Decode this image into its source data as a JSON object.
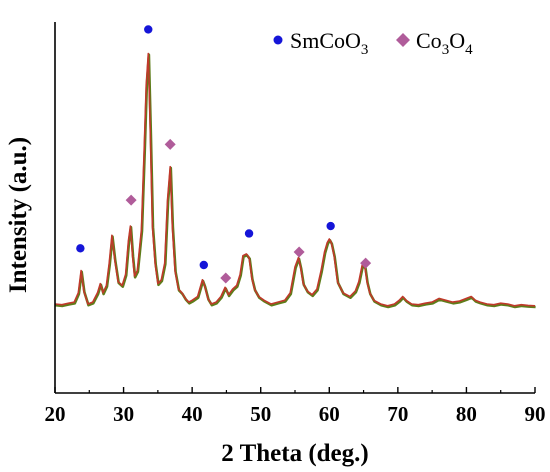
{
  "chart_data": {
    "type": "line",
    "xlabel": "2 Theta (deg.)",
    "ylabel": "Intensity (a.u.)",
    "xlim": [
      20,
      90
    ],
    "ylim": [
      0,
      100
    ],
    "xticks": [
      "20",
      "30",
      "40",
      "50",
      "60",
      "70",
      "80",
      "90"
    ],
    "yticks_shown": false,
    "grid": false,
    "legend_position": "top-right",
    "colors": {
      "line_main": "#c0392b",
      "line_shadow": "#5e7d1a",
      "smcoo3_marker": "#1515d8",
      "co3o4_marker": "#b05c9a",
      "axis": "#000000"
    },
    "series": [
      {
        "name": "",
        "x": [
          20.0,
          21.0,
          22.0,
          22.8,
          23.4,
          23.8,
          24.2,
          24.8,
          25.5,
          26.2,
          26.6,
          27.0,
          27.5,
          27.9,
          28.3,
          28.7,
          29.2,
          29.8,
          30.3,
          30.7,
          31.0,
          31.3,
          31.6,
          32.0,
          32.6,
          33.0,
          33.3,
          33.6,
          33.9,
          34.2,
          34.6,
          35.0,
          35.5,
          36.0,
          36.4,
          36.8,
          37.1,
          37.5,
          38.0,
          38.5,
          39.0,
          39.5,
          40.0,
          40.8,
          41.5,
          41.8,
          42.3,
          42.8,
          43.5,
          44.2,
          44.8,
          45.3,
          45.9,
          46.5,
          47.0,
          47.4,
          47.9,
          48.3,
          48.7,
          49.1,
          49.7,
          50.5,
          51.5,
          52.5,
          53.5,
          54.3,
          55.0,
          55.5,
          55.8,
          56.2,
          56.8,
          57.5,
          58.2,
          58.8,
          59.3,
          59.7,
          60.0,
          60.3,
          60.7,
          61.2,
          62.0,
          63.0,
          63.8,
          64.3,
          64.8,
          65.2,
          65.5,
          65.9,
          66.5,
          67.5,
          68.5,
          69.5,
          70.2,
          70.7,
          71.2,
          72.0,
          73.0,
          74.0,
          75.0,
          76.0,
          77.0,
          78.0,
          79.0,
          80.0,
          80.7,
          81.3,
          82.0,
          83.0,
          84.0,
          85.0,
          86.0,
          87.0,
          88.0,
          89.0,
          90.0
        ],
        "y": [
          24.0,
          23.8,
          24.2,
          24.5,
          27.0,
          33.0,
          27.5,
          24.0,
          24.5,
          27.0,
          29.5,
          27.0,
          29.0,
          35.0,
          42.5,
          36.0,
          30.0,
          29.0,
          32.0,
          41.0,
          45.0,
          37.0,
          31.5,
          33.0,
          44.0,
          65.0,
          83.0,
          91.5,
          70.0,
          45.0,
          35.0,
          29.5,
          30.5,
          35.0,
          52.0,
          61.0,
          45.0,
          33.0,
          28.0,
          27.0,
          25.5,
          24.5,
          25.0,
          26.0,
          30.5,
          29.0,
          25.5,
          24.0,
          24.5,
          26.0,
          28.5,
          26.5,
          28.0,
          29.0,
          32.0,
          37.0,
          37.5,
          36.5,
          31.0,
          28.0,
          26.0,
          25.0,
          24.0,
          24.5,
          25.0,
          27.0,
          34.0,
          36.5,
          34.0,
          29.5,
          27.5,
          26.5,
          28.0,
          33.0,
          38.0,
          40.5,
          41.5,
          40.5,
          37.0,
          30.0,
          27.0,
          26.0,
          27.5,
          30.0,
          34.5,
          34.0,
          30.0,
          27.0,
          25.0,
          24.0,
          23.5,
          24.0,
          25.0,
          26.0,
          25.0,
          24.0,
          23.8,
          24.2,
          24.5,
          25.5,
          25.0,
          24.5,
          24.8,
          25.5,
          26.0,
          25.0,
          24.5,
          24.0,
          23.8,
          24.2,
          24.0,
          23.5,
          23.8,
          23.6,
          23.5
        ]
      }
    ],
    "markers": {
      "smcoo3": [
        {
          "x": 23.7,
          "y": 39.0
        },
        {
          "x": 33.6,
          "y": 98.0
        },
        {
          "x": 41.7,
          "y": 34.5
        },
        {
          "x": 48.3,
          "y": 43.0
        },
        {
          "x": 60.2,
          "y": 45.0
        }
      ],
      "co3o4": [
        {
          "x": 31.1,
          "y": 52.0
        },
        {
          "x": 36.8,
          "y": 67.0
        },
        {
          "x": 44.9,
          "y": 31.0
        },
        {
          "x": 55.6,
          "y": 38.0
        },
        {
          "x": 65.3,
          "y": 35.0
        }
      ]
    },
    "legend": {
      "smcoo3": {
        "base": "SmCoO",
        "sub": "3"
      },
      "co3o4": {
        "p1": "Co",
        "s1": "3",
        "p2": "O",
        "s2": "4"
      }
    }
  }
}
